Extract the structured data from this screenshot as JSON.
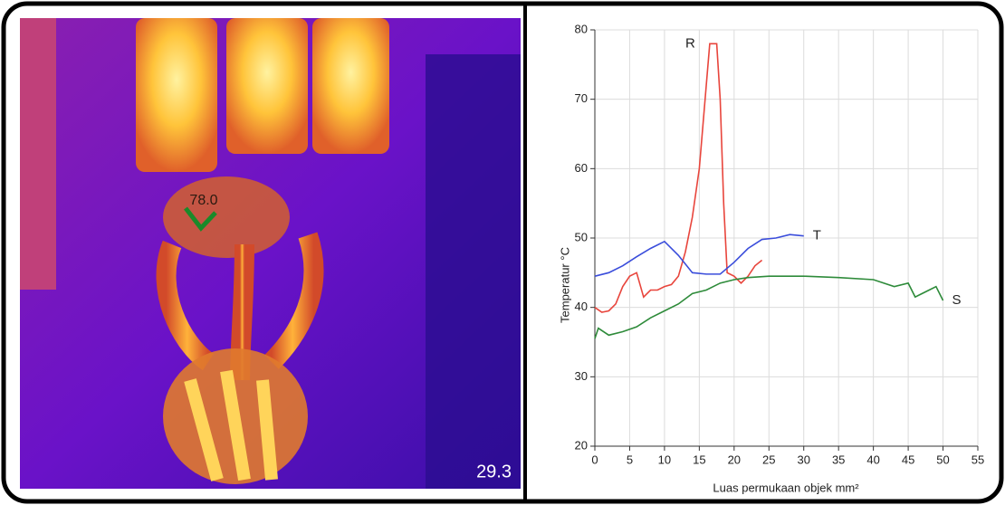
{
  "thermal_image": {
    "spot_label": "78.0",
    "temperature_readout": "29.3"
  },
  "chart_data": {
    "type": "line",
    "x_label": "Luas permukaan objek mm²",
    "y_label": "Temperatur °C",
    "xlim": [
      0,
      55
    ],
    "xticks": [
      0,
      5,
      10,
      15,
      20,
      25,
      30,
      35,
      40,
      45,
      50,
      55
    ],
    "ylim": [
      20,
      80
    ],
    "yticks": [
      20,
      30,
      40,
      50,
      60,
      70,
      80
    ],
    "grid": true,
    "series": [
      {
        "name": "R",
        "color": "#e8453c",
        "x": [
          0,
          1,
          2,
          3,
          4,
          5,
          6,
          7,
          8,
          9,
          10,
          11,
          12,
          13,
          14,
          15,
          16,
          16.5,
          17.5,
          18,
          18.5,
          19,
          20,
          21,
          22,
          23,
          24
        ],
        "values": [
          40,
          39.3,
          39.5,
          40.5,
          43,
          44.5,
          45,
          41.5,
          42.5,
          42.5,
          43,
          43.3,
          44.5,
          48,
          53,
          60,
          72,
          78,
          78,
          70,
          55,
          45,
          44.5,
          43.5,
          44.5,
          46,
          46.8
        ]
      },
      {
        "name": "T",
        "color": "#3a4ddb",
        "x": [
          0,
          2,
          4,
          6,
          8,
          10,
          12,
          14,
          16,
          18,
          20,
          22,
          24,
          26,
          28,
          30
        ],
        "values": [
          44.5,
          45,
          46,
          47.3,
          48.5,
          49.5,
          47.5,
          45,
          44.8,
          44.8,
          46.5,
          48.5,
          49.8,
          50,
          50.5,
          50.3
        ]
      },
      {
        "name": "S",
        "color": "#2e8b3a",
        "x": [
          0,
          0.5,
          2,
          4,
          6,
          8,
          10,
          12,
          14,
          16,
          18,
          20,
          22,
          25,
          30,
          35,
          40,
          43,
          45,
          46,
          48,
          49,
          50
        ],
        "values": [
          35.5,
          37,
          36,
          36.5,
          37.2,
          38.5,
          39.5,
          40.5,
          42,
          42.5,
          43.5,
          44,
          44.3,
          44.5,
          44.5,
          44.3,
          44,
          43,
          43.5,
          41.5,
          42.5,
          43,
          41
        ]
      }
    ]
  }
}
